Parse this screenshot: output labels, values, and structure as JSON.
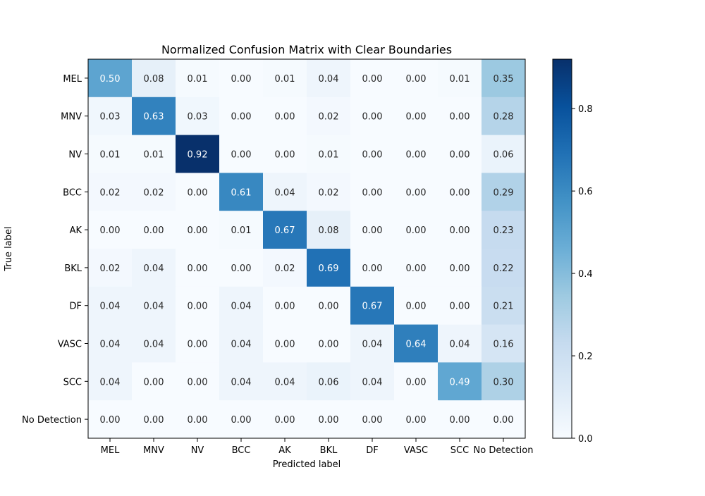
{
  "chart_data": {
    "type": "heatmap",
    "title": "Normalized Confusion Matrix with Clear Boundaries",
    "xlabel": "Predicted label",
    "ylabel": "True label",
    "x_categories": [
      "MEL",
      "MNV",
      "NV",
      "BCC",
      "AK",
      "BKL",
      "DF",
      "VASC",
      "SCC",
      "No Detection"
    ],
    "y_categories": [
      "MEL",
      "MNV",
      "NV",
      "BCC",
      "AK",
      "BKL",
      "DF",
      "VASC",
      "SCC",
      "No Detection"
    ],
    "values": [
      [
        0.5,
        0.08,
        0.01,
        0.0,
        0.01,
        0.04,
        0.0,
        0.0,
        0.01,
        0.35
      ],
      [
        0.03,
        0.63,
        0.03,
        0.0,
        0.0,
        0.02,
        0.0,
        0.0,
        0.0,
        0.28
      ],
      [
        0.01,
        0.01,
        0.92,
        0.0,
        0.0,
        0.01,
        0.0,
        0.0,
        0.0,
        0.06
      ],
      [
        0.02,
        0.02,
        0.0,
        0.61,
        0.04,
        0.02,
        0.0,
        0.0,
        0.0,
        0.29
      ],
      [
        0.0,
        0.0,
        0.0,
        0.01,
        0.67,
        0.08,
        0.0,
        0.0,
        0.0,
        0.23
      ],
      [
        0.02,
        0.04,
        0.0,
        0.0,
        0.02,
        0.69,
        0.0,
        0.0,
        0.0,
        0.22
      ],
      [
        0.04,
        0.04,
        0.0,
        0.04,
        0.0,
        0.0,
        0.67,
        0.0,
        0.0,
        0.21
      ],
      [
        0.04,
        0.04,
        0.0,
        0.04,
        0.0,
        0.0,
        0.04,
        0.64,
        0.04,
        0.16
      ],
      [
        0.04,
        0.0,
        0.0,
        0.04,
        0.04,
        0.06,
        0.04,
        0.0,
        0.49,
        0.3
      ],
      [
        0.0,
        0.0,
        0.0,
        0.0,
        0.0,
        0.0,
        0.0,
        0.0,
        0.0,
        0.0
      ]
    ],
    "colormap": "Blues",
    "colorbar": {
      "range": [
        0,
        0.92
      ],
      "ticks": [
        0.0,
        0.2,
        0.4,
        0.6,
        0.8
      ]
    },
    "grid": false
  }
}
